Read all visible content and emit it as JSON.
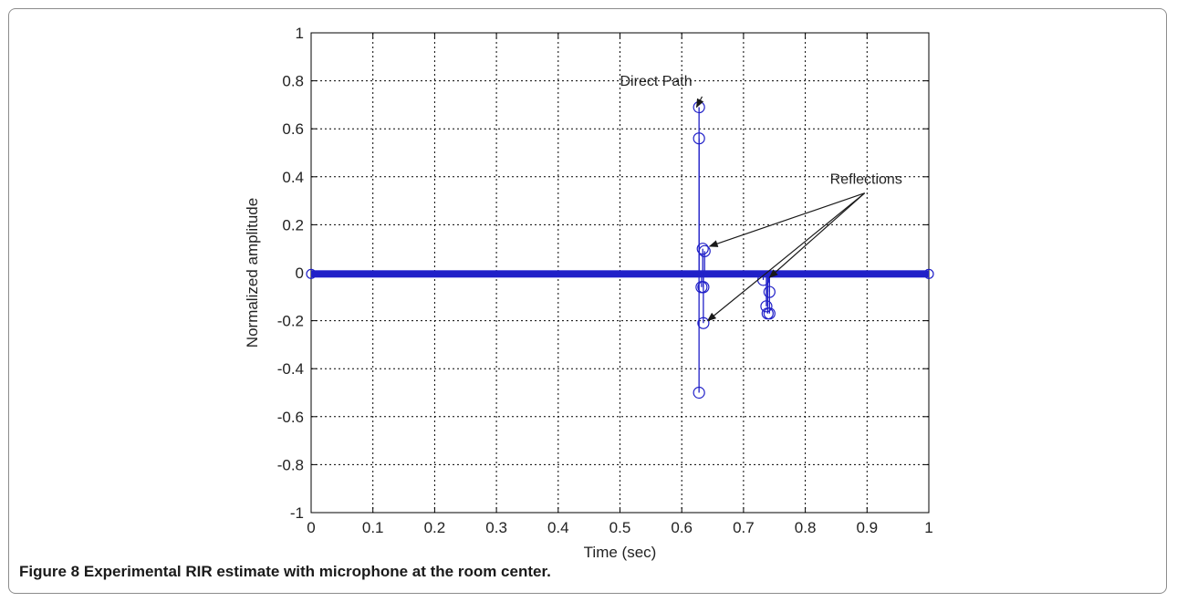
{
  "chart_data": {
    "type": "stem",
    "xlabel": "Time (sec)",
    "ylabel": "Normalized amplitude",
    "xlim": [
      0,
      1
    ],
    "ylim": [
      -1,
      1
    ],
    "xticks": [
      0,
      0.1,
      0.2,
      0.3,
      0.4,
      0.5,
      0.6,
      0.7,
      0.8,
      0.9,
      1
    ],
    "xtick_labels": [
      "0",
      "0.1",
      "0.2",
      "0.3",
      "0.4",
      "0.5",
      "0.6",
      "0.7",
      "0.8",
      "0.9",
      "1"
    ],
    "yticks": [
      -1,
      -0.8,
      -0.6,
      -0.4,
      -0.2,
      0,
      0.2,
      0.4,
      0.6,
      0.8,
      1
    ],
    "ytick_labels": [
      "-1",
      "-0.8",
      "-0.6",
      "-0.4",
      "-0.2",
      "0",
      "0.2",
      "0.4",
      "0.6",
      "0.8",
      "1"
    ],
    "grid": true,
    "color": "#2020c8",
    "baseline_y": -0.005,
    "stems": [
      {
        "x": 0.628,
        "y": 0.69
      },
      {
        "x": 0.628,
        "y": 0.56
      },
      {
        "x": 0.628,
        "y": -0.5
      },
      {
        "x": 0.634,
        "y": 0.1
      },
      {
        "x": 0.637,
        "y": 0.09
      },
      {
        "x": 0.632,
        "y": -0.06
      },
      {
        "x": 0.635,
        "y": -0.06
      },
      {
        "x": 0.635,
        "y": -0.21
      },
      {
        "x": 0.732,
        "y": -0.03
      },
      {
        "x": 0.737,
        "y": -0.14
      },
      {
        "x": 0.739,
        "y": -0.17
      },
      {
        "x": 0.742,
        "y": -0.17
      },
      {
        "x": 0.742,
        "y": -0.08
      }
    ],
    "annotations": [
      {
        "text": "Direct Path",
        "x": 0.5,
        "y": 0.78,
        "arrows_to": [
          {
            "x": 0.624,
            "y": 0.69
          }
        ]
      },
      {
        "text": "Reflections",
        "x": 0.84,
        "y": 0.37,
        "arrows_to": [
          {
            "x": 0.645,
            "y": 0.11
          },
          {
            "x": 0.642,
            "y": -0.2
          },
          {
            "x": 0.742,
            "y": -0.02
          }
        ]
      }
    ]
  },
  "caption": {
    "label": "Figure 8",
    "text": "Experimental RIR estimate with microphone at the room center."
  }
}
